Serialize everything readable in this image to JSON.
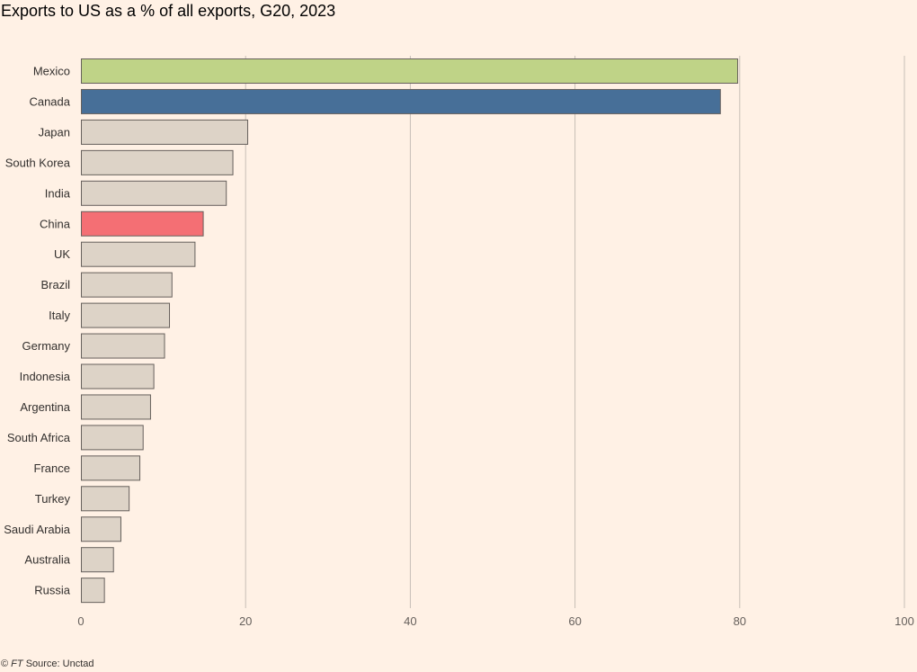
{
  "title": "Exports to US as a % of all exports, G20, 2023",
  "footer": {
    "copyright": "©",
    "brand": "FT",
    "source": "Source: Unctad"
  },
  "colors": {
    "background": "#FFF1E5",
    "default_bar": "#DDD3C7",
    "highlight_mexico": "#BFD387",
    "highlight_canada": "#476F98",
    "highlight_china": "#F46F74",
    "bar_border": "#66605C",
    "grid": "#C7BEB6"
  },
  "chart_data": {
    "type": "bar",
    "orientation": "horizontal",
    "title": "Exports to US as a % of all exports, G20, 2023",
    "xlabel": "",
    "ylabel": "",
    "xlim": [
      0,
      100
    ],
    "xticks": [
      0,
      20,
      40,
      60,
      80,
      100
    ],
    "grid": true,
    "categories": [
      "Mexico",
      "Canada",
      "Japan",
      "South Korea",
      "India",
      "China",
      "UK",
      "Brazil",
      "Italy",
      "Germany",
      "Indonesia",
      "Argentina",
      "South Africa",
      "France",
      "Turkey",
      "Saudi Arabia",
      "Australia",
      "Russia"
    ],
    "values": [
      79.7,
      77.6,
      20.2,
      18.4,
      17.6,
      14.8,
      13.8,
      11.0,
      10.7,
      10.1,
      8.8,
      8.4,
      7.5,
      7.1,
      5.8,
      4.8,
      3.9,
      2.8
    ],
    "bar_colors": [
      "#BFD387",
      "#476F98",
      "#DDD3C7",
      "#DDD3C7",
      "#DDD3C7",
      "#F46F74",
      "#DDD3C7",
      "#DDD3C7",
      "#DDD3C7",
      "#DDD3C7",
      "#DDD3C7",
      "#DDD3C7",
      "#DDD3C7",
      "#DDD3C7",
      "#DDD3C7",
      "#DDD3C7",
      "#DDD3C7",
      "#DDD3C7"
    ]
  }
}
